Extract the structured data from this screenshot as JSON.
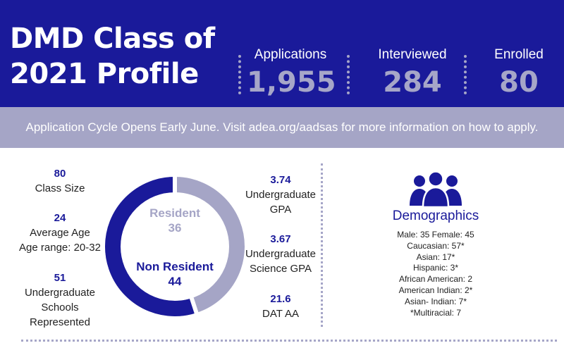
{
  "header": {
    "title_line1": "DMD Class of",
    "title_line2": "2021 Profile",
    "stats": [
      {
        "label": "Applications",
        "value": "1,955"
      },
      {
        "label": "Interviewed",
        "value": "284"
      },
      {
        "label": "Enrolled",
        "value": "80"
      }
    ]
  },
  "banner": {
    "text": "Application Cycle Opens Early June. Visit adea.org/aadsas for more information on how to apply."
  },
  "left_stats": [
    {
      "value": "80",
      "lines": [
        "Class Size"
      ]
    },
    {
      "value": "24",
      "lines": [
        "Average Age",
        "Age range: 20-32"
      ]
    },
    {
      "value": "51",
      "lines": [
        "Undergraduate",
        "Schools",
        "Represented"
      ]
    }
  ],
  "donut": {
    "resident_label": "Resident",
    "resident_value": "36",
    "nonresident_label": "Non Resident",
    "nonresident_value": "44",
    "resident": 36,
    "nonresident": 44,
    "resident_color": "#a5a5c6",
    "nonresident_color": "#1a1a9a"
  },
  "right_stats": [
    {
      "value": "3.74",
      "lines": [
        "Undergraduate",
        "GPA"
      ]
    },
    {
      "value": "3.67",
      "lines": [
        "Undergraduate",
        "Science GPA"
      ]
    },
    {
      "value": "21.6",
      "lines": [
        "DAT AA"
      ]
    }
  ],
  "demographics": {
    "icon": "people-group-icon",
    "title": "Demographics",
    "items": [
      "Male: 35 Female: 45",
      "Caucasian: 57*",
      "Asian: 17*",
      "Hispanic: 3*",
      "African American: 2",
      "American Indian: 2*",
      "Asian- Indian: 7*",
      "*Multiracial: 7"
    ]
  },
  "colors": {
    "primary": "#1a1a9a",
    "secondary": "#a5a5c6",
    "white": "#ffffff"
  }
}
